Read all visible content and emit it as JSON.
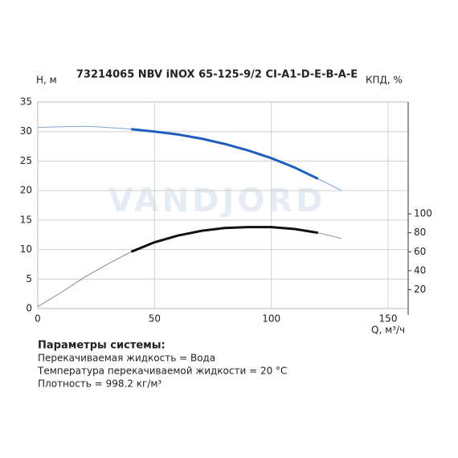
{
  "chart_data": {
    "type": "line",
    "title": "73214065 NBV iNOX 65-125-9/2 CI-A1-D-E-B-A-E",
    "y_label": "H, м",
    "y2_label": "КПД, %",
    "x_label": "Q, м³/ч",
    "watermark": "VANDJORD",
    "xlim": [
      0,
      158.6
    ],
    "xticks": [
      0,
      50,
      100,
      150
    ],
    "ylim": [
      0,
      35
    ],
    "yticks": [
      0,
      5,
      10,
      15,
      20,
      25,
      30,
      35
    ],
    "y2lim": [
      0,
      218
    ],
    "y2ticks": [
      20,
      40,
      60,
      80,
      100
    ],
    "grid": true,
    "series": [
      {
        "color": "#7da6d8",
        "line_width": 1,
        "x": [
          0,
          10,
          20,
          30,
          40,
          50,
          60,
          70,
          80,
          90,
          100,
          110,
          120,
          130
        ],
        "values": [
          30.7,
          30.8,
          30.9,
          30.7,
          30.4,
          30.0,
          29.5,
          28.8,
          27.9,
          26.8,
          25.5,
          23.9,
          22.0,
          20.0
        ]
      },
      {
        "color": "#1f5fbf",
        "line_width": 3,
        "x": [
          40,
          50,
          60,
          70,
          80,
          90,
          100,
          110,
          120
        ],
        "values": [
          30.4,
          30.0,
          29.5,
          28.8,
          27.9,
          26.8,
          25.5,
          23.9,
          22.0
        ]
      },
      {
        "color": "#888888",
        "line_width": 1,
        "axis": "y2",
        "x": [
          0,
          10,
          20,
          30,
          40,
          50,
          60,
          70,
          80,
          90,
          100,
          110,
          120,
          130
        ],
        "values": [
          2,
          17,
          33,
          47,
          60,
          70,
          77,
          82,
          85,
          86,
          86,
          84,
          80,
          74
        ]
      },
      {
        "color": "#111111",
        "line_width": 3,
        "axis": "y2",
        "x": [
          40,
          50,
          60,
          70,
          80,
          90,
          100,
          110,
          120
        ],
        "values": [
          60,
          70,
          77,
          82,
          85,
          86,
          86,
          84,
          80
        ]
      }
    ]
  },
  "system_params": {
    "heading": "Параметры системы:",
    "lines": [
      "Перекачиваемая жидкость = Вода",
      "Температура перекачиваемой жидкости = 20 °C",
      "Плотность = 998.2 кг/м³"
    ]
  }
}
